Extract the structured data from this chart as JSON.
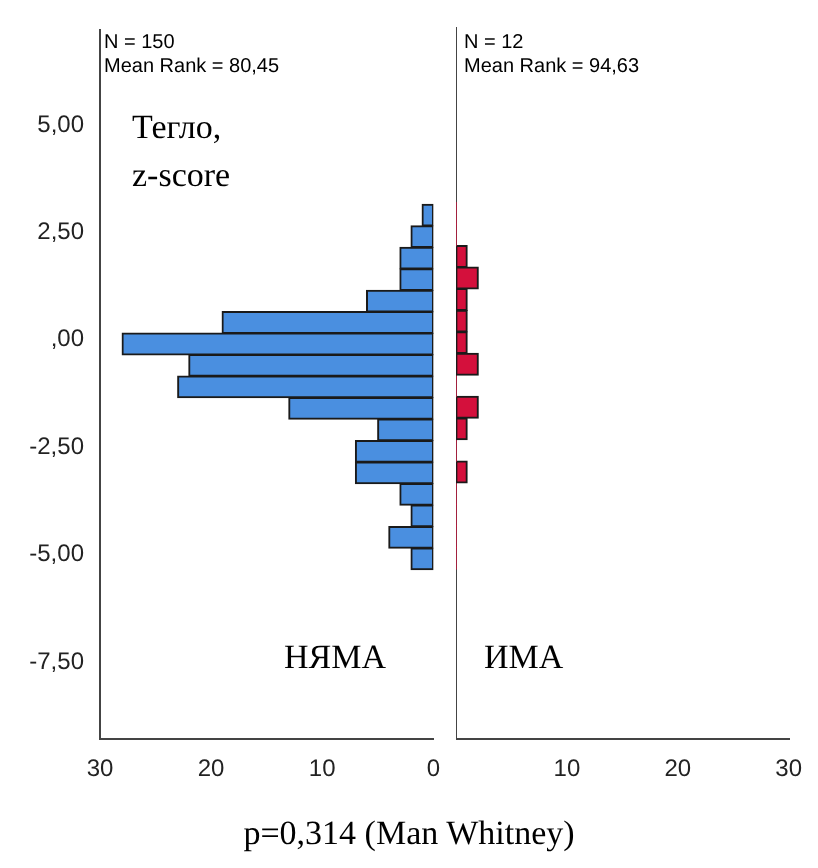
{
  "chart_data": [
    {
      "type": "histogram",
      "orientation": "horizontal",
      "bins": [
        -5.35,
        -4.85,
        -4.35,
        -3.85,
        -3.35,
        -2.85,
        -2.35,
        -1.85,
        -1.35,
        -0.85,
        -0.35,
        0.15,
        0.65,
        1.15,
        1.65,
        2.15,
        2.65,
        3.15
      ],
      "values": [
        2,
        4,
        2,
        3,
        7,
        7,
        5,
        13,
        23,
        22,
        28,
        19,
        6,
        3,
        3,
        2,
        1
      ],
      "color": "#4a8fe0",
      "xlim": [
        30,
        0
      ],
      "xticks": [
        30,
        20,
        10,
        0
      ],
      "ylim": [
        -9.3,
        7.2
      ],
      "yticks": [
        {
          "value": -7.5,
          "label": "-7,50"
        },
        {
          "value": -5,
          "label": "-5,00"
        },
        {
          "value": -2.5,
          "label": "-2,50"
        },
        {
          "value": 0,
          "label": ",00"
        },
        {
          "value": 2.5,
          "label": "2,50"
        },
        {
          "value": 5,
          "label": "5,00"
        }
      ],
      "grid": false,
      "legend": false,
      "annotations": [
        "N = 150",
        "Mean Rank = 80,45",
        "Тегло, z-score",
        "НЯМА",
        "p=0,314 (Man Whitney)"
      ]
    },
    {
      "type": "histogram",
      "orientation": "horizontal",
      "bins": [
        -5.35,
        -4.85,
        -4.35,
        -3.85,
        -3.35,
        -2.85,
        -2.35,
        -1.85,
        -1.35,
        -0.85,
        -0.35,
        0.15,
        0.65,
        1.15,
        1.65,
        2.15,
        2.65,
        3.15
      ],
      "values": [
        0,
        0,
        0,
        0,
        1,
        0,
        1,
        2,
        0,
        2,
        1,
        1,
        1,
        2,
        1,
        0,
        0
      ],
      "color": "#d4103c",
      "xlim": [
        0,
        30
      ],
      "xticks": [
        10,
        20,
        30
      ],
      "ylim": [
        -9.3,
        7.2
      ],
      "tick_labels": "x",
      "grid": false,
      "legend": false,
      "annotations": [
        "N = 12",
        "Mean Rank = 94,63",
        "ИМА"
      ]
    }
  ]
}
